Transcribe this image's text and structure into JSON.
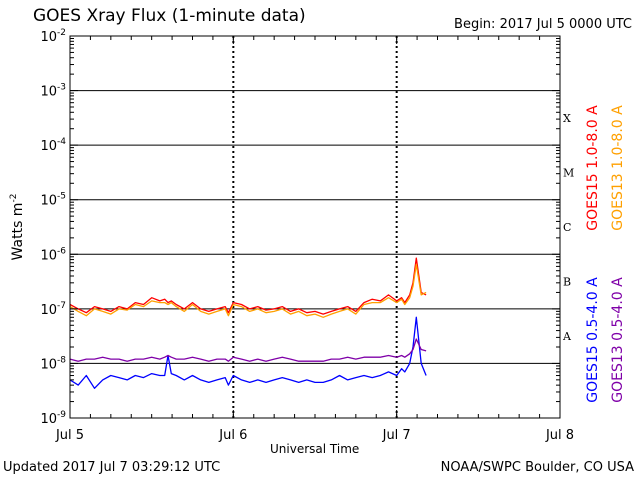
{
  "header": {
    "title": "GOES Xray Flux (1-minute data)",
    "begin": "Begin:  2017 Jul 5 0000 UTC"
  },
  "footer": {
    "updated": "Updated 2017 Jul  7 03:29:12 UTC",
    "credit": "NOAA/SWPC Boulder, CO USA"
  },
  "colors": {
    "goes15_long": "#ff0000",
    "goes13_long": "#ffa000",
    "goes15_short": "#0000ff",
    "goes13_short": "#7f00a8"
  },
  "chart_data": {
    "type": "line",
    "title": "GOES Xray Flux (1-minute data)",
    "xlabel": "Universal Time",
    "ylabel": "Watts m^-2",
    "x_unit": "days since 2017 Jul 5 0000 UTC",
    "xlim": [
      0,
      3
    ],
    "ylim": [
      1e-09,
      0.01
    ],
    "y_scale": "log",
    "x_ticks": [
      {
        "value": 0,
        "label": "Jul 5"
      },
      {
        "value": 1,
        "label": "Jul 6"
      },
      {
        "value": 2,
        "label": "Jul 7"
      },
      {
        "value": 3,
        "label": "Jul 8"
      }
    ],
    "y_ticks": [
      {
        "value": 1e-09,
        "base": "10",
        "exp": "-9"
      },
      {
        "value": 1e-08,
        "base": "10",
        "exp": "-8"
      },
      {
        "value": 1e-07,
        "base": "10",
        "exp": "-7"
      },
      {
        "value": 1e-06,
        "base": "10",
        "exp": "-6"
      },
      {
        "value": 1e-05,
        "base": "10",
        "exp": "-5"
      },
      {
        "value": 0.0001,
        "base": "10",
        "exp": "-4"
      },
      {
        "value": 0.001,
        "base": "10",
        "exp": "-3"
      },
      {
        "value": 0.01,
        "base": "10",
        "exp": "-2"
      }
    ],
    "flare_classes": [
      {
        "label": "A",
        "value": 3.16e-08
      },
      {
        "label": "B",
        "value": 3.16e-07
      },
      {
        "label": "C",
        "value": 3.16e-06
      },
      {
        "label": "M",
        "value": 3.16e-05
      },
      {
        "label": "X",
        "value": 0.000316
      }
    ],
    "legend": {
      "right": [
        "GOES15 1.0-8.0 A",
        "GOES13 1.0-8.0 A"
      ],
      "left": [
        "GOES15 0.5-4.0 A",
        "GOES13 0.5-4.0 A"
      ]
    },
    "series": [
      {
        "name": "GOES15 1.0-8.0 A",
        "color": "#ff0000",
        "x": [
          0.0,
          0.05,
          0.1,
          0.15,
          0.2,
          0.25,
          0.3,
          0.35,
          0.4,
          0.45,
          0.5,
          0.55,
          0.58,
          0.6,
          0.62,
          0.65,
          0.7,
          0.75,
          0.8,
          0.85,
          0.9,
          0.95,
          0.97,
          1.0,
          1.05,
          1.1,
          1.15,
          1.2,
          1.25,
          1.3,
          1.35,
          1.4,
          1.45,
          1.5,
          1.55,
          1.6,
          1.65,
          1.7,
          1.75,
          1.8,
          1.85,
          1.9,
          1.95,
          2.0,
          2.03,
          2.05,
          2.08,
          2.1,
          2.12,
          2.15,
          2.18
        ],
        "values": [
          1.2e-07,
          1e-07,
          8.5e-08,
          1.1e-07,
          1e-07,
          9e-08,
          1.1e-07,
          1e-07,
          1.3e-07,
          1.2e-07,
          1.6e-07,
          1.4e-07,
          1.5e-07,
          1.3e-07,
          1.4e-07,
          1.2e-07,
          1e-07,
          1.3e-07,
          1e-07,
          9e-08,
          1e-07,
          1.1e-07,
          8.5e-08,
          1.3e-07,
          1.2e-07,
          1e-07,
          1.1e-07,
          9.5e-08,
          1e-07,
          1.1e-07,
          9e-08,
          1e-07,
          8.5e-08,
          9e-08,
          8e-08,
          9e-08,
          1e-07,
          1.1e-07,
          9e-08,
          1.3e-07,
          1.5e-07,
          1.4e-07,
          1.8e-07,
          1.4e-07,
          1.6e-07,
          1.3e-07,
          1.8e-07,
          3e-07,
          8.5e-07,
          2e-07,
          1.8e-07
        ]
      },
      {
        "name": "GOES13 1.0-8.0 A",
        "color": "#ffa000",
        "x": [
          0.0,
          0.05,
          0.1,
          0.15,
          0.2,
          0.25,
          0.3,
          0.35,
          0.4,
          0.45,
          0.5,
          0.55,
          0.58,
          0.6,
          0.62,
          0.65,
          0.7,
          0.75,
          0.8,
          0.85,
          0.9,
          0.95,
          0.97,
          1.0,
          1.05,
          1.1,
          1.15,
          1.2,
          1.25,
          1.3,
          1.35,
          1.4,
          1.45,
          1.5,
          1.55,
          1.6,
          1.65,
          1.7,
          1.75,
          1.8,
          1.85,
          1.9,
          1.95,
          2.0,
          2.03,
          2.05,
          2.08,
          2.1,
          2.12,
          2.15,
          2.18
        ],
        "values": [
          1.1e-07,
          9e-08,
          7.5e-08,
          1e-07,
          9e-08,
          8e-08,
          1e-07,
          9.5e-08,
          1.2e-07,
          1.1e-07,
          1.4e-07,
          1.3e-07,
          1.3e-07,
          1.2e-07,
          1.3e-07,
          1.1e-07,
          9e-08,
          1.2e-07,
          9e-08,
          8e-08,
          9e-08,
          1e-07,
          7.5e-08,
          1.2e-07,
          1.1e-07,
          9e-08,
          1e-07,
          8.5e-08,
          9e-08,
          1e-07,
          8e-08,
          9e-08,
          7.5e-08,
          8e-08,
          7e-08,
          8e-08,
          9e-08,
          1e-07,
          8e-08,
          1.2e-07,
          1.3e-07,
          1.3e-07,
          1.6e-07,
          1.3e-07,
          1.5e-07,
          1.2e-07,
          1.6e-07,
          2.6e-07,
          6.5e-07,
          1.8e-07,
          2e-07
        ]
      },
      {
        "name": "GOES15 0.5-4.0 A",
        "color": "#0000ff",
        "x": [
          0.0,
          0.05,
          0.1,
          0.15,
          0.2,
          0.25,
          0.3,
          0.35,
          0.4,
          0.45,
          0.5,
          0.55,
          0.58,
          0.6,
          0.62,
          0.65,
          0.7,
          0.75,
          0.8,
          0.85,
          0.9,
          0.95,
          0.97,
          1.0,
          1.05,
          1.1,
          1.15,
          1.2,
          1.25,
          1.3,
          1.35,
          1.4,
          1.45,
          1.5,
          1.55,
          1.6,
          1.65,
          1.7,
          1.75,
          1.8,
          1.85,
          1.9,
          1.95,
          2.0,
          2.03,
          2.05,
          2.08,
          2.1,
          2.12,
          2.15,
          2.18
        ],
        "values": [
          5e-09,
          4e-09,
          6e-09,
          3.5e-09,
          5e-09,
          6e-09,
          5.5e-09,
          5e-09,
          6e-09,
          5.5e-09,
          6.5e-09,
          6e-09,
          6e-09,
          1.4e-08,
          6.5e-09,
          6e-09,
          5e-09,
          6e-09,
          5e-09,
          4.5e-09,
          5e-09,
          5.5e-09,
          4e-09,
          6e-09,
          5e-09,
          4.5e-09,
          5e-09,
          4.5e-09,
          5e-09,
          5.5e-09,
          5e-09,
          4.5e-09,
          5e-09,
          4.5e-09,
          4.5e-09,
          5e-09,
          6e-09,
          5e-09,
          5.5e-09,
          6e-09,
          5.5e-09,
          6e-09,
          7e-09,
          6e-09,
          8e-09,
          7e-09,
          1e-08,
          2e-08,
          7e-08,
          1e-08,
          6e-09
        ]
      },
      {
        "name": "GOES13 0.5-4.0 A",
        "color": "#7f00a8",
        "x": [
          0.0,
          0.05,
          0.1,
          0.15,
          0.2,
          0.25,
          0.3,
          0.35,
          0.4,
          0.45,
          0.5,
          0.55,
          0.58,
          0.6,
          0.62,
          0.65,
          0.7,
          0.75,
          0.8,
          0.85,
          0.9,
          0.95,
          0.97,
          1.0,
          1.05,
          1.1,
          1.15,
          1.2,
          1.25,
          1.3,
          1.35,
          1.4,
          1.45,
          1.5,
          1.55,
          1.6,
          1.65,
          1.7,
          1.75,
          1.8,
          1.85,
          1.9,
          1.95,
          2.0,
          2.03,
          2.05,
          2.08,
          2.1,
          2.12,
          2.15,
          2.18
        ],
        "values": [
          1.2e-08,
          1.1e-08,
          1.2e-08,
          1.2e-08,
          1.3e-08,
          1.2e-08,
          1.2e-08,
          1.1e-08,
          1.2e-08,
          1.2e-08,
          1.3e-08,
          1.2e-08,
          1.3e-08,
          1.4e-08,
          1.3e-08,
          1.2e-08,
          1.2e-08,
          1.3e-08,
          1.2e-08,
          1.1e-08,
          1.2e-08,
          1.2e-08,
          1.1e-08,
          1.3e-08,
          1.2e-08,
          1.1e-08,
          1.2e-08,
          1.1e-08,
          1.2e-08,
          1.3e-08,
          1.2e-08,
          1.1e-08,
          1.1e-08,
          1.1e-08,
          1.1e-08,
          1.2e-08,
          1.2e-08,
          1.3e-08,
          1.2e-08,
          1.3e-08,
          1.3e-08,
          1.3e-08,
          1.4e-08,
          1.3e-08,
          1.4e-08,
          1.3e-08,
          1.5e-08,
          1.8e-08,
          2.8e-08,
          1.8e-08,
          1.7e-08
        ]
      }
    ]
  }
}
